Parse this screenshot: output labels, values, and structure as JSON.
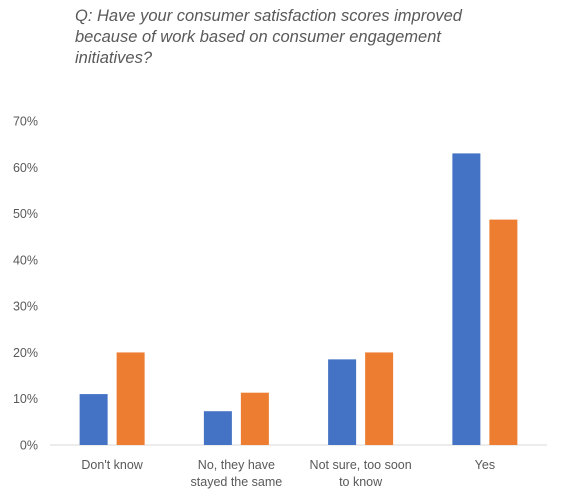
{
  "chart_data": {
    "type": "bar",
    "title": "Q: Have your consumer satisfaction scores improved\nbecause of work based on consumer engagement\ninitiatives?",
    "categories": [
      [
        "Don't know"
      ],
      [
        "No, they have",
        "stayed the same"
      ],
      [
        "Not sure, too soon",
        "to know"
      ],
      [
        "Yes"
      ]
    ],
    "series": [
      {
        "values": [
          11,
          7.3,
          18.5,
          63
        ],
        "color": "#4472C4"
      },
      {
        "values": [
          20,
          11.3,
          20,
          48.7
        ],
        "color": "#ED7D31"
      }
    ],
    "yticks": [
      "0%",
      "10%",
      "20%",
      "30%",
      "40%",
      "50%",
      "60%",
      "70%"
    ],
    "ylim": [
      0,
      70
    ],
    "grid": false,
    "legend": "none"
  }
}
